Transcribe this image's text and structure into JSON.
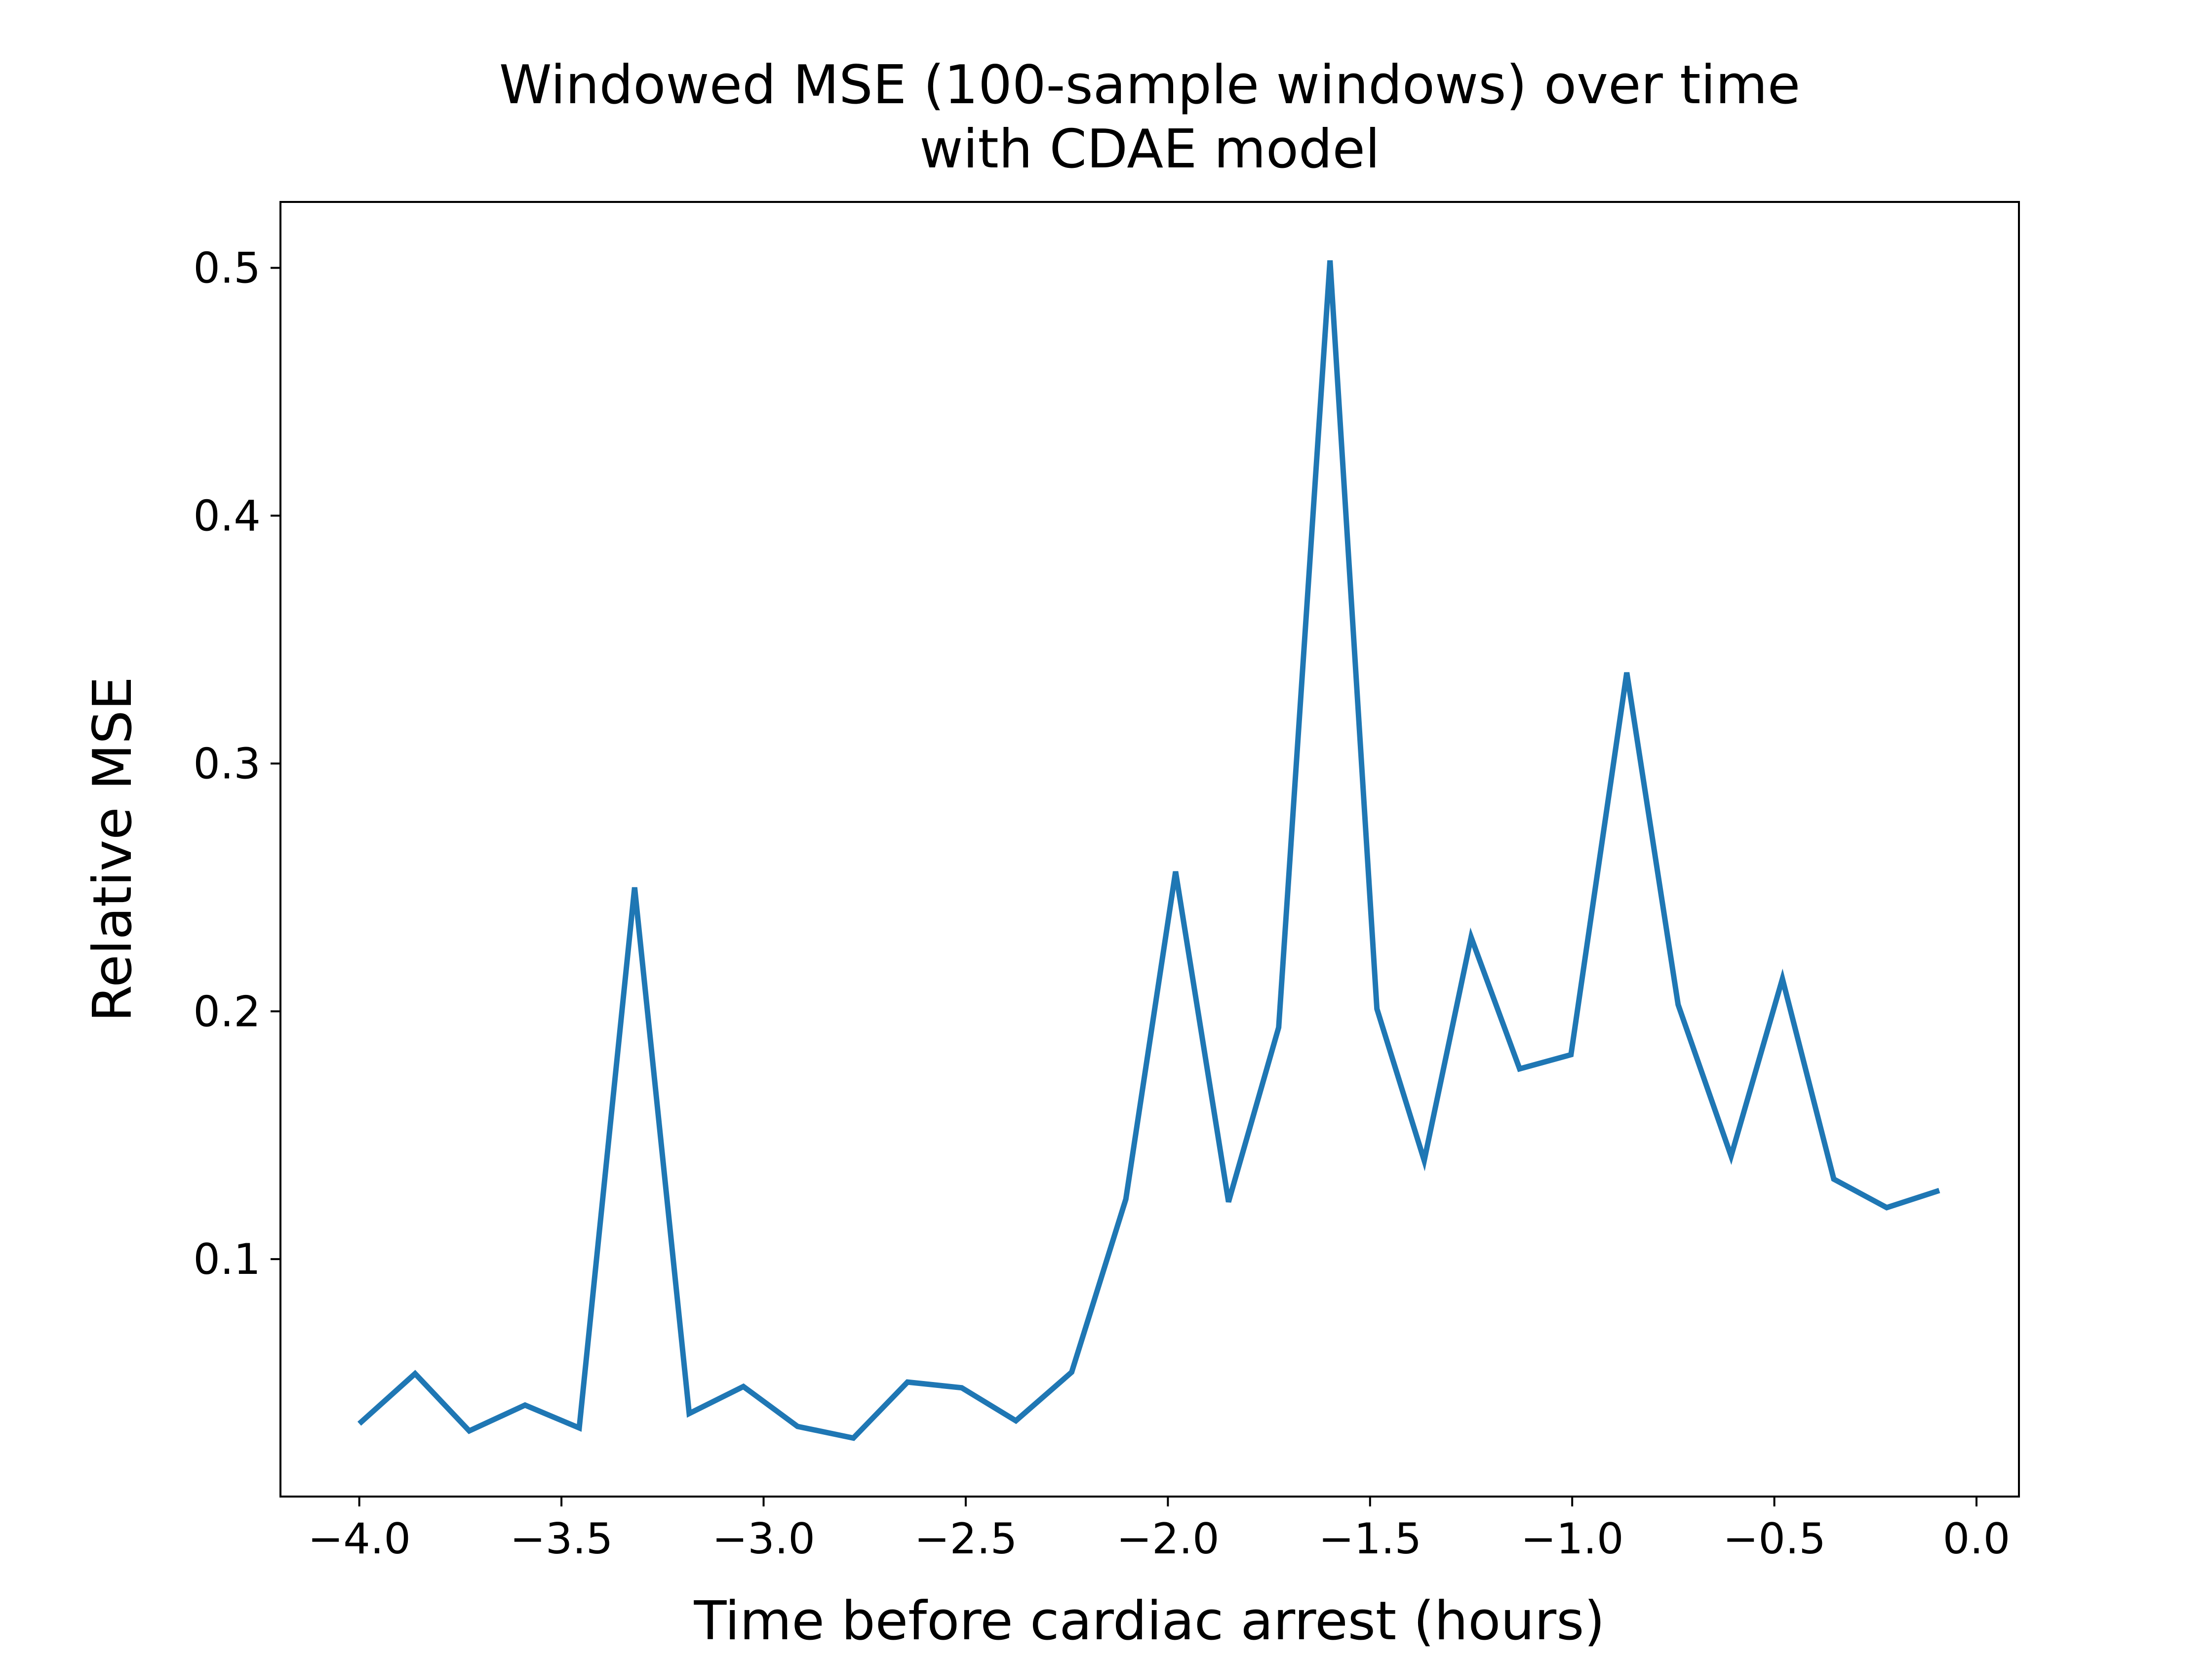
{
  "chart_data": {
    "type": "line",
    "title": "Windowed MSE (100-sample windows) over time\nwith CDAE model",
    "x_label": "Time before cardiac arrest (hours)",
    "y_label": "Relative MSE",
    "series": [
      {
        "color": "#1f77b4",
        "x": [
          -4.0,
          -3.862,
          -3.728,
          -3.59,
          -3.456,
          -3.319,
          -3.184,
          -3.05,
          -2.916,
          -2.778,
          -2.644,
          -2.51,
          -2.376,
          -2.238,
          -2.104,
          -1.981,
          -1.85,
          -1.726,
          -1.599,
          -1.483,
          -1.366,
          -1.25,
          -1.13,
          -1.003,
          -0.865,
          -0.738,
          -0.607,
          -0.48,
          -0.353,
          -0.222,
          -0.092
        ],
        "values": [
          0.0336,
          0.0538,
          0.0307,
          0.0411,
          0.0319,
          0.25,
          0.0377,
          0.0486,
          0.0325,
          0.0278,
          0.0504,
          0.0481,
          0.0348,
          0.0544,
          0.1242,
          0.2564,
          0.1231,
          0.1935,
          0.503,
          0.201,
          0.1398,
          0.2299,
          0.1768,
          0.1825,
          0.3367,
          0.2027,
          0.1416,
          0.2131,
          0.1323,
          0.1208,
          0.1277
        ]
      }
    ],
    "xlim": [
      -4.195,
      0.105
    ],
    "xticks": [
      {
        "value": -4.0,
        "label": "−4.0"
      },
      {
        "value": -3.5,
        "label": "−3.5"
      },
      {
        "value": -3.0,
        "label": "−3.0"
      },
      {
        "value": -2.5,
        "label": "−2.5"
      },
      {
        "value": -2.0,
        "label": "−2.0"
      },
      {
        "value": -1.5,
        "label": "−1.5"
      },
      {
        "value": -1.0,
        "label": "−1.0"
      },
      {
        "value": -0.5,
        "label": "−0.5"
      },
      {
        "value": 0.0,
        "label": "0.0"
      }
    ],
    "ylim": [
      0.0042,
      0.5266
    ],
    "yticks": [
      0.1,
      0.2,
      0.3,
      0.4,
      0.5
    ],
    "grid": false
  }
}
